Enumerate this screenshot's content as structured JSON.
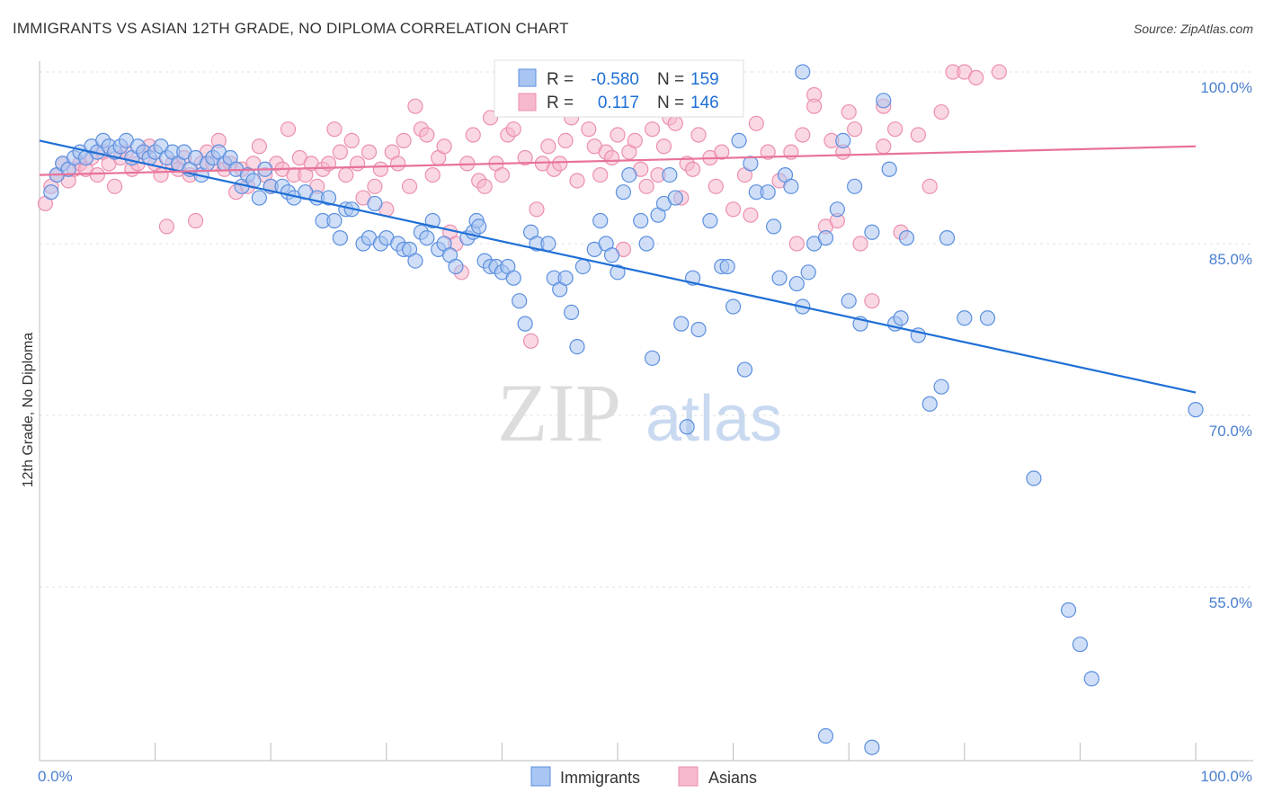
{
  "header": {
    "title": "IMMIGRANTS VS ASIAN 12TH GRADE, NO DIPLOMA CORRELATION CHART",
    "source": "Source: ZipAtlas.com"
  },
  "watermark": {
    "part1": "ZIP",
    "part2": "atlas"
  },
  "colors": {
    "blue": "#1f6fd6",
    "blue_fill": "#a9c5f1",
    "blue_stroke": "#5b8fe0",
    "pink": "#e8729a",
    "pink_fill": "#f6b8cc",
    "pink_stroke": "#ec8fb0",
    "axis_label": "#4a7fd0",
    "grid": "#dddddd"
  },
  "legend": {
    "rows": [
      {
        "r_label": "R =",
        "r_value": "-0.580",
        "n_label": "N =",
        "n_value": "159"
      },
      {
        "r_label": "R =",
        "r_value": "0.117",
        "n_label": "N =",
        "n_value": "146"
      }
    ]
  },
  "chart_data": {
    "type": "scatter",
    "title": "IMMIGRANTS VS ASIAN 12TH GRADE, NO DIPLOMA CORRELATION CHART",
    "xlabel": "",
    "ylabel": "12th Grade, No Diploma",
    "xlim": [
      0,
      100
    ],
    "ylim": [
      39.5,
      101.5
    ],
    "x_tick_labels": [
      "0.0%",
      "100.0%"
    ],
    "y_ticks": [
      {
        "value": 100,
        "label": "100.0%"
      },
      {
        "value": 85,
        "label": "85.0%"
      },
      {
        "value": 70,
        "label": "70.0%"
      },
      {
        "value": 55,
        "label": "55.0%"
      }
    ],
    "grid": true,
    "legend_position": "top-center",
    "series": [
      {
        "name": "Immigrants",
        "color": "#1f6fd6",
        "r": -0.58,
        "n": 159,
        "trend": [
          [
            0,
            94.0
          ],
          [
            100,
            72.0
          ]
        ],
        "points": [
          [
            1,
            89.5
          ],
          [
            1.5,
            91
          ],
          [
            2,
            92
          ],
          [
            2.5,
            91.5
          ],
          [
            3,
            92.5
          ],
          [
            3.5,
            93
          ],
          [
            4,
            92.5
          ],
          [
            4.5,
            93.5
          ],
          [
            5,
            93
          ],
          [
            5.5,
            94
          ],
          [
            6,
            93.5
          ],
          [
            6.5,
            93
          ],
          [
            7,
            93.5
          ],
          [
            7.5,
            94
          ],
          [
            8,
            92.5
          ],
          [
            8.5,
            93.5
          ],
          [
            9,
            93
          ],
          [
            9.5,
            92.5
          ],
          [
            10,
            93
          ],
          [
            10.5,
            93.5
          ],
          [
            11,
            92.5
          ],
          [
            11.5,
            93
          ],
          [
            12,
            92
          ],
          [
            12.5,
            93
          ],
          [
            13,
            91.5
          ],
          [
            13.5,
            92.5
          ],
          [
            14,
            91
          ],
          [
            14.5,
            92
          ],
          [
            15,
            92.5
          ],
          [
            15.5,
            93
          ],
          [
            16,
            92
          ],
          [
            16.5,
            92.5
          ],
          [
            17,
            91.5
          ],
          [
            17.5,
            90
          ],
          [
            18,
            91
          ],
          [
            18.5,
            90.5
          ],
          [
            19,
            89
          ],
          [
            19.5,
            91.5
          ],
          [
            20,
            90
          ],
          [
            21,
            90
          ],
          [
            21.5,
            89.5
          ],
          [
            22,
            89
          ],
          [
            23,
            89.5
          ],
          [
            24,
            89
          ],
          [
            24.5,
            87
          ],
          [
            25,
            89
          ],
          [
            25.5,
            87
          ],
          [
            26,
            85.5
          ],
          [
            26.5,
            88
          ],
          [
            27,
            88
          ],
          [
            28,
            85
          ],
          [
            28.5,
            85.5
          ],
          [
            29,
            88.5
          ],
          [
            29.5,
            85
          ],
          [
            30,
            85.5
          ],
          [
            31,
            85
          ],
          [
            31.5,
            84.5
          ],
          [
            32,
            84.5
          ],
          [
            32.5,
            83.5
          ],
          [
            33,
            86
          ],
          [
            33.5,
            85.5
          ],
          [
            34,
            87
          ],
          [
            34.5,
            84.5
          ],
          [
            35,
            85
          ],
          [
            35.5,
            84
          ],
          [
            36,
            83
          ],
          [
            37,
            85.5
          ],
          [
            37.5,
            86
          ],
          [
            37.8,
            87
          ],
          [
            38,
            86.5
          ],
          [
            38.5,
            83.5
          ],
          [
            39,
            83
          ],
          [
            39.5,
            83
          ],
          [
            40,
            82.5
          ],
          [
            40.5,
            83
          ],
          [
            41,
            82
          ],
          [
            41.5,
            80
          ],
          [
            42,
            78
          ],
          [
            42.5,
            86
          ],
          [
            43,
            85
          ],
          [
            44,
            85
          ],
          [
            44.5,
            82
          ],
          [
            45,
            81
          ],
          [
            45.5,
            82
          ],
          [
            46,
            79
          ],
          [
            46.5,
            76
          ],
          [
            47,
            83
          ],
          [
            48,
            84.5
          ],
          [
            48.5,
            87
          ],
          [
            49,
            85
          ],
          [
            49.5,
            84
          ],
          [
            50,
            82.5
          ],
          [
            50.5,
            89.5
          ],
          [
            51,
            91
          ],
          [
            52,
            87
          ],
          [
            52.5,
            85
          ],
          [
            53,
            75
          ],
          [
            53.5,
            87.5
          ],
          [
            54,
            88.5
          ],
          [
            54.5,
            91
          ],
          [
            55,
            89
          ],
          [
            55.5,
            78
          ],
          [
            56,
            69
          ],
          [
            56.5,
            82
          ],
          [
            57,
            77.5
          ],
          [
            58,
            87
          ],
          [
            59,
            83
          ],
          [
            59.5,
            83
          ],
          [
            60,
            79.5
          ],
          [
            60.5,
            94
          ],
          [
            61,
            74
          ],
          [
            61.5,
            92
          ],
          [
            62,
            89.5
          ],
          [
            63,
            89.5
          ],
          [
            63.5,
            86.5
          ],
          [
            64,
            82
          ],
          [
            64.5,
            91
          ],
          [
            65,
            90
          ],
          [
            65.5,
            81.5
          ],
          [
            66,
            79.5
          ],
          [
            66.5,
            82.5
          ],
          [
            67,
            85
          ],
          [
            68,
            85.5
          ],
          [
            68.5,
            38.5
          ],
          [
            69,
            88
          ],
          [
            69.5,
            94
          ],
          [
            70,
            80
          ],
          [
            70.5,
            90
          ],
          [
            71,
            78
          ],
          [
            72,
            86
          ],
          [
            73,
            97.5
          ],
          [
            73.5,
            91.5
          ],
          [
            74,
            78
          ],
          [
            74.5,
            78.5
          ],
          [
            75,
            85.5
          ],
          [
            76,
            77
          ],
          [
            77,
            71
          ],
          [
            78,
            72.5
          ],
          [
            78.5,
            85.5
          ],
          [
            80,
            78.5
          ],
          [
            82,
            78.5
          ],
          [
            86,
            64.5
          ],
          [
            89,
            53
          ],
          [
            90,
            50
          ],
          [
            91,
            47
          ],
          [
            66,
            100
          ],
          [
            68,
            42
          ],
          [
            72,
            41
          ],
          [
            100,
            70.5
          ]
        ]
      },
      {
        "name": "Asians",
        "color": "#e8729a",
        "r": 0.117,
        "n": 146,
        "trend": [
          [
            0,
            91.0
          ],
          [
            100,
            93.5
          ]
        ],
        "points": [
          [
            0.5,
            88.5
          ],
          [
            1,
            90
          ],
          [
            1.5,
            91
          ],
          [
            2,
            92
          ],
          [
            2.5,
            90.5
          ],
          [
            3,
            91.5
          ],
          [
            3.5,
            92
          ],
          [
            4,
            91.5
          ],
          [
            4.5,
            92.5
          ],
          [
            5,
            91
          ],
          [
            5.5,
            93
          ],
          [
            6,
            92
          ],
          [
            6.5,
            90
          ],
          [
            7,
            92.5
          ],
          [
            7.5,
            93
          ],
          [
            8,
            91.5
          ],
          [
            8.5,
            92
          ],
          [
            9,
            93
          ],
          [
            9.5,
            93.5
          ],
          [
            10,
            92
          ],
          [
            10.5,
            91
          ],
          [
            11,
            86.5
          ],
          [
            11.5,
            92
          ],
          [
            12,
            91.5
          ],
          [
            12.5,
            92.5
          ],
          [
            13,
            91
          ],
          [
            13.5,
            87
          ],
          [
            14,
            92
          ],
          [
            14.5,
            93
          ],
          [
            15,
            92
          ],
          [
            15.5,
            94
          ],
          [
            16,
            91.5
          ],
          [
            16.5,
            92
          ],
          [
            17,
            89.5
          ],
          [
            17.5,
            91.5
          ],
          [
            18,
            90
          ],
          [
            18.5,
            92
          ],
          [
            19,
            93.5
          ],
          [
            19.5,
            91
          ],
          [
            20,
            90
          ],
          [
            20.5,
            92
          ],
          [
            21,
            91.5
          ],
          [
            21.5,
            95
          ],
          [
            22,
            91
          ],
          [
            22.5,
            92.5
          ],
          [
            23,
            91
          ],
          [
            23.5,
            92
          ],
          [
            24,
            90
          ],
          [
            24.5,
            91.5
          ],
          [
            25,
            92
          ],
          [
            25.5,
            95
          ],
          [
            26,
            93
          ],
          [
            26.5,
            91
          ],
          [
            27,
            94
          ],
          [
            27.5,
            92
          ],
          [
            28,
            89
          ],
          [
            28.5,
            93
          ],
          [
            29,
            90
          ],
          [
            29.5,
            91.5
          ],
          [
            30,
            88
          ],
          [
            30.5,
            93
          ],
          [
            31,
            92
          ],
          [
            31.5,
            94
          ],
          [
            32,
            90
          ],
          [
            32.5,
            97
          ],
          [
            33,
            95
          ],
          [
            33.5,
            94.5
          ],
          [
            34,
            91
          ],
          [
            34.5,
            92.5
          ],
          [
            35,
            93.5
          ],
          [
            35.5,
            86
          ],
          [
            36,
            85
          ],
          [
            36.5,
            82.5
          ],
          [
            37,
            92
          ],
          [
            37.5,
            94.5
          ],
          [
            38,
            90.5
          ],
          [
            38.5,
            90
          ],
          [
            39,
            96
          ],
          [
            39.5,
            92
          ],
          [
            40,
            91
          ],
          [
            40.5,
            94.5
          ],
          [
            41,
            95
          ],
          [
            41.5,
            97
          ],
          [
            42,
            92.5
          ],
          [
            42.5,
            76.5
          ],
          [
            43,
            88
          ],
          [
            43.5,
            92
          ],
          [
            44,
            93.5
          ],
          [
            44.5,
            91.5
          ],
          [
            45,
            92
          ],
          [
            45.5,
            94
          ],
          [
            46,
            96
          ],
          [
            46.5,
            90.5
          ],
          [
            47,
            98
          ],
          [
            47.5,
            95
          ],
          [
            48,
            93.5
          ],
          [
            48.5,
            91
          ],
          [
            49,
            93
          ],
          [
            49.5,
            92.5
          ],
          [
            50,
            94.5
          ],
          [
            50.5,
            84.5
          ],
          [
            51,
            93
          ],
          [
            51.5,
            94
          ],
          [
            52,
            91.5
          ],
          [
            52.5,
            90
          ],
          [
            53,
            95
          ],
          [
            53.5,
            91
          ],
          [
            54,
            93.5
          ],
          [
            54.5,
            96
          ],
          [
            55,
            95.5
          ],
          [
            55.5,
            89
          ],
          [
            56,
            92
          ],
          [
            56.5,
            91.5
          ],
          [
            57,
            94.5
          ],
          [
            58,
            92.5
          ],
          [
            58.5,
            90
          ],
          [
            59,
            93
          ],
          [
            60,
            88
          ],
          [
            61,
            91
          ],
          [
            61.5,
            87.5
          ],
          [
            62,
            95.5
          ],
          [
            63,
            93
          ],
          [
            64,
            90.5
          ],
          [
            65,
            93
          ],
          [
            65.5,
            85
          ],
          [
            66,
            94.5
          ],
          [
            67,
            98
          ],
          [
            68,
            86.5
          ],
          [
            68.5,
            94
          ],
          [
            69,
            87
          ],
          [
            69.5,
            93
          ],
          [
            70,
            96.5
          ],
          [
            70.5,
            95
          ],
          [
            71,
            85
          ],
          [
            72,
            80
          ],
          [
            73,
            97
          ],
          [
            74,
            95
          ],
          [
            74.5,
            86
          ],
          [
            76,
            94.5
          ],
          [
            77,
            90
          ],
          [
            78,
            96.5
          ],
          [
            79,
            100
          ],
          [
            80,
            100
          ],
          [
            81,
            99.5
          ],
          [
            83,
            100
          ],
          [
            67,
            97
          ],
          [
            73,
            93.5
          ]
        ]
      }
    ]
  },
  "bottom_legend": {
    "items": [
      {
        "label": "Immigrants"
      },
      {
        "label": "Asians"
      }
    ]
  }
}
